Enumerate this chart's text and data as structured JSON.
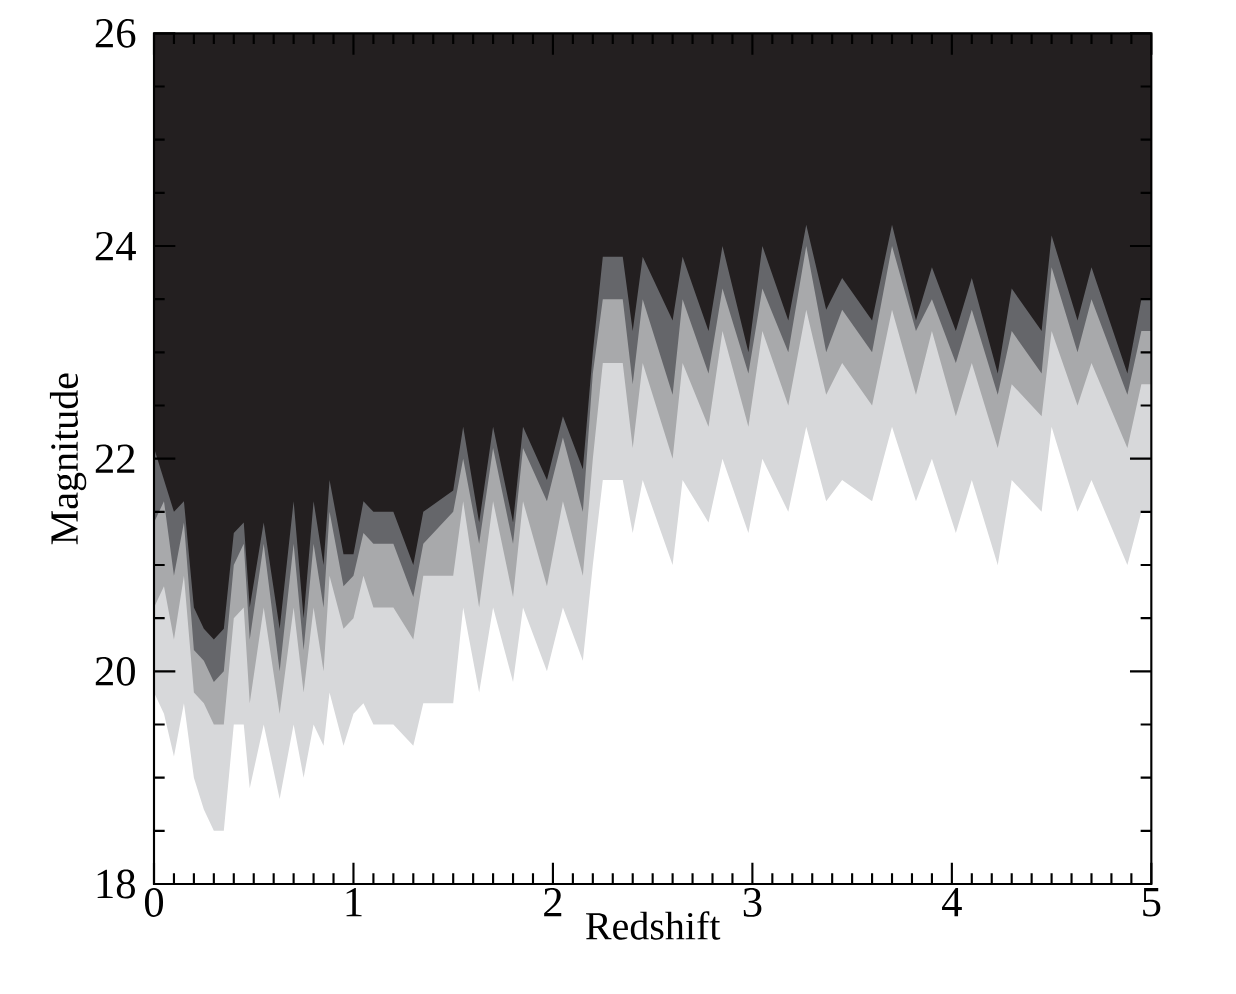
{
  "chart_data": {
    "type": "area",
    "xlabel": "Redshift",
    "ylabel": "Magnitude",
    "bands": [
      {
        "axis": "y",
        "from": 18,
        "to": 26,
        "color": "#231f20"
      }
    ],
    "xlim": [
      0,
      5
    ],
    "ylim": [
      18,
      26
    ],
    "xticks": [
      0,
      1,
      2,
      3,
      4,
      5
    ],
    "yticks": [
      18,
      20,
      22,
      24,
      26
    ],
    "x": [
      0,
      0.05,
      0.1,
      0.15,
      0.2,
      0.25,
      0.3,
      0.35,
      0.4,
      0.45,
      0.48,
      0.55,
      0.63,
      0.7,
      0.75,
      0.8,
      0.85,
      0.88,
      0.95,
      1.0,
      1.05,
      1.1,
      1.2,
      1.3,
      1.35,
      1.5,
      1.55,
      1.63,
      1.7,
      1.8,
      1.85,
      1.97,
      2.05,
      2.15,
      2.2,
      2.25,
      2.35,
      2.4,
      2.45,
      2.6,
      2.65,
      2.78,
      2.85,
      2.98,
      3.05,
      3.18,
      3.27,
      3.37,
      3.45,
      3.6,
      3.7,
      3.82,
      3.9,
      4.02,
      4.1,
      4.23,
      4.3,
      4.45,
      4.5,
      4.63,
      4.7,
      4.88,
      4.95,
      5.0
    ],
    "series": [
      {
        "color": "#65666a",
        "values": [
          22.1,
          21.8,
          21.5,
          21.6,
          20.6,
          20.4,
          20.3,
          20.4,
          21.3,
          21.4,
          20.6,
          21.4,
          20.4,
          21.6,
          20.5,
          21.6,
          21.0,
          21.8,
          21.1,
          21.1,
          21.6,
          21.5,
          21.5,
          21.0,
          21.5,
          21.7,
          22.3,
          21.4,
          22.3,
          21.4,
          22.3,
          21.8,
          22.4,
          21.9,
          23.0,
          23.9,
          23.9,
          23.2,
          23.9,
          23.3,
          23.9,
          23.2,
          24.0,
          23.0,
          24.0,
          23.3,
          24.2,
          23.4,
          23.7,
          23.3,
          24.2,
          23.3,
          23.8,
          23.2,
          23.7,
          22.8,
          23.6,
          23.2,
          24.1,
          23.3,
          23.8,
          22.8,
          23.5,
          23.5
        ]
      },
      {
        "color": "#a8a9ab",
        "values": [
          21.4,
          21.6,
          20.9,
          21.4,
          20.2,
          20.1,
          19.9,
          20.0,
          21.0,
          21.2,
          20.3,
          21.2,
          20.0,
          21.2,
          20.2,
          21.2,
          20.6,
          21.5,
          20.8,
          20.9,
          21.3,
          21.2,
          21.2,
          20.7,
          21.2,
          21.5,
          22.0,
          21.2,
          22.1,
          21.2,
          22.1,
          21.6,
          22.2,
          21.5,
          22.8,
          23.5,
          23.5,
          22.7,
          23.5,
          22.6,
          23.5,
          22.8,
          23.6,
          22.8,
          23.6,
          23.0,
          24.0,
          23.0,
          23.4,
          23.0,
          24.0,
          23.2,
          23.5,
          22.9,
          23.4,
          22.6,
          23.2,
          22.8,
          23.8,
          23.0,
          23.5,
          22.6,
          23.2,
          23.2
        ]
      },
      {
        "color": "#d7d8da",
        "values": [
          20.6,
          20.8,
          20.3,
          20.9,
          19.8,
          19.7,
          19.5,
          19.5,
          20.5,
          20.6,
          19.7,
          20.6,
          19.6,
          20.6,
          19.8,
          20.6,
          20.0,
          20.9,
          20.4,
          20.5,
          20.9,
          20.6,
          20.6,
          20.3,
          20.9,
          20.9,
          21.6,
          20.6,
          21.6,
          20.7,
          21.6,
          20.8,
          21.6,
          20.9,
          22.0,
          22.9,
          22.9,
          22.1,
          22.9,
          22.0,
          22.9,
          22.3,
          23.2,
          22.3,
          23.2,
          22.5,
          23.4,
          22.6,
          22.9,
          22.5,
          23.4,
          22.6,
          23.2,
          22.4,
          22.9,
          22.1,
          22.7,
          22.4,
          23.2,
          22.5,
          22.9,
          22.1,
          22.7,
          22.7
        ]
      },
      {
        "color": "#ffffff",
        "values": [
          19.8,
          19.6,
          19.2,
          19.7,
          19.0,
          18.7,
          18.5,
          18.5,
          19.5,
          19.5,
          18.9,
          19.5,
          18.8,
          19.5,
          19.0,
          19.5,
          19.3,
          19.8,
          19.3,
          19.6,
          19.7,
          19.5,
          19.5,
          19.3,
          19.7,
          19.7,
          20.6,
          19.8,
          20.6,
          19.9,
          20.6,
          20.0,
          20.6,
          20.1,
          21.0,
          21.8,
          21.8,
          21.3,
          21.8,
          21.0,
          21.8,
          21.4,
          22.0,
          21.3,
          22.0,
          21.5,
          22.3,
          21.6,
          21.8,
          21.6,
          22.3,
          21.6,
          22.0,
          21.3,
          21.8,
          21.0,
          21.8,
          21.5,
          22.3,
          21.5,
          21.8,
          21.0,
          21.5,
          21.5
        ]
      }
    ]
  }
}
